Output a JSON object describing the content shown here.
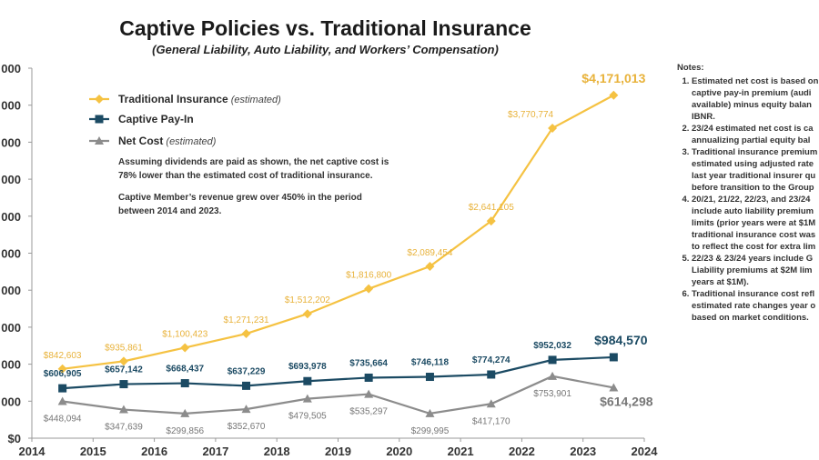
{
  "header": {
    "title": "Captive Policies vs. Traditional Insurance",
    "subtitle": "(General Liability, Auto Liability, and Workers’ Compensation)"
  },
  "chart_data": {
    "type": "line",
    "title": "Captive Policies vs. Traditional Insurance",
    "subtitle": "(General Liability, Auto Liability, and Workers’ Compensation)",
    "xlabel": "",
    "ylabel": "",
    "xlim": [
      2014,
      2024
    ],
    "ylim": [
      0,
      4500000
    ],
    "x_ticks": [
      "2014",
      "2015",
      "2016",
      "2017",
      "2018",
      "2019",
      "2020",
      "2021",
      "2022",
      "2023",
      "2024"
    ],
    "y_ticks": [
      "$0",
      "000",
      "000",
      "000",
      "000",
      "000",
      "000",
      "000",
      "000",
      "000",
      "000"
    ],
    "grid": false,
    "legend_position": "top-left",
    "x": [
      2014.5,
      2015.5,
      2016.5,
      2017.5,
      2018.5,
      2019.5,
      2020.5,
      2021.5,
      2022.5,
      2023.5
    ],
    "series": [
      {
        "name": "Traditional Insurance",
        "name_note": "(estimated)",
        "color": "#F5C242",
        "marker": "diamond",
        "values": [
          842603,
          935861,
          1100423,
          1271231,
          1512202,
          1816800,
          2089454,
          2641105,
          3770774,
          4171013
        ],
        "labels": [
          "$842,603",
          "$935,861",
          "$1,100,423",
          "$1,271,231",
          "$1,512,202",
          "$1,816,800",
          "$2,089,454",
          "$2,641,105",
          "$3,770,774",
          "$4,171,013"
        ]
      },
      {
        "name": "Captive Pay-In",
        "name_note": "",
        "color": "#1B4A63",
        "marker": "square",
        "values": [
          606905,
          657142,
          668437,
          637229,
          693978,
          735664,
          746118,
          774274,
          952032,
          984570
        ],
        "labels": [
          "$606,905",
          "$657,142",
          "$668,437",
          "$637,229",
          "$693,978",
          "$735,664",
          "$746,118",
          "$774,274",
          "$952,032",
          "$984,570"
        ]
      },
      {
        "name": "Net Cost",
        "name_note": "(estimated)",
        "color": "#8C8C8C",
        "marker": "triangle",
        "values": [
          448094,
          347639,
          299856,
          352670,
          479505,
          535297,
          299995,
          417170,
          753901,
          614298
        ],
        "labels": [
          "$448,094",
          "$347,639",
          "$299,856",
          "$352,670",
          "$479,505",
          "$535,297",
          "$299,995",
          "$417,170",
          "$753,901",
          "$614,298"
        ]
      }
    ]
  },
  "annotation": {
    "line1": "Assuming dividends are paid as shown, the net captive cost is",
    "line2": "78% lower than the estimated cost of traditional insurance.",
    "line3_pre": "Captive Member’s revenue grew over ",
    "line3_bold": "450%",
    "line3_post": " in the period",
    "line4": "between 2014 and 2023."
  },
  "notes": {
    "title": "Notes:",
    "items": [
      [
        "Estimated net cost is based on",
        "captive pay-in premium (audi",
        "available) minus equity balan",
        "IBNR."
      ],
      [
        "23/24 estimated net cost is ca",
        "annualizing partial equity bal"
      ],
      [
        "Traditional insurance premium",
        "estimated using adjusted rate",
        "last year traditional insurer qu",
        "before transition to the Group"
      ],
      [
        "20/21, 21/22, 22/23, and 23/24",
        "include auto liability premium",
        "limits (prior years were at $1M",
        "traditional insurance cost was",
        "to reflect the cost for extra lim"
      ],
      [
        "22/23 & 23/24 years include G",
        "Liability premiums at $2M lim",
        "years at $1M)."
      ],
      [
        "Traditional insurance cost refl",
        "estimated rate changes year o",
        "based on market conditions."
      ]
    ]
  }
}
